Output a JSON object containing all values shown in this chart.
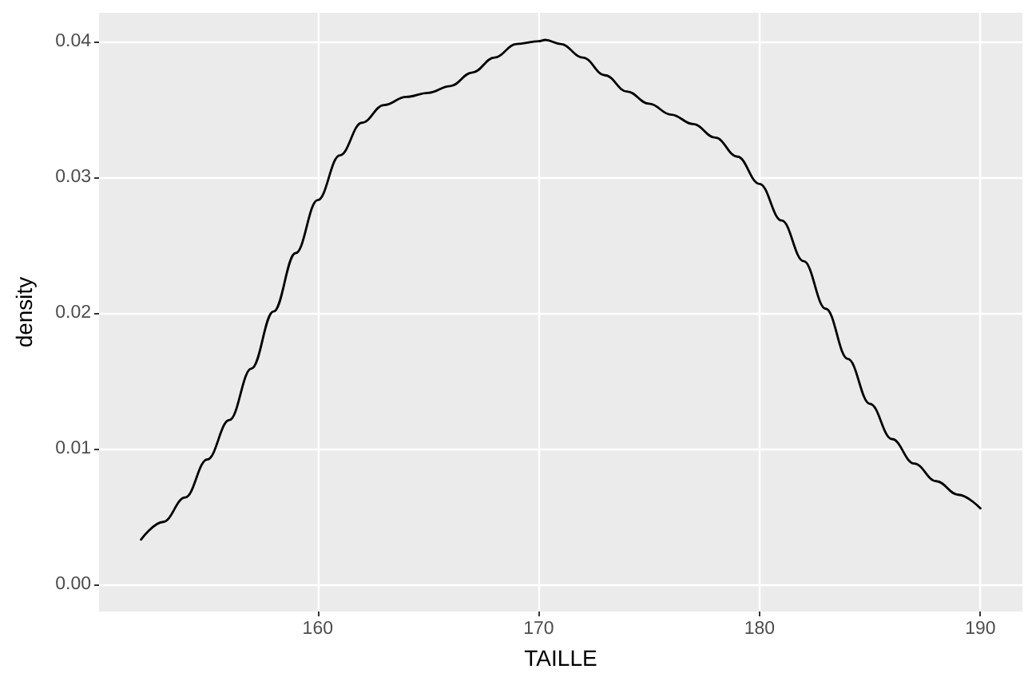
{
  "chart_data": {
    "type": "line",
    "xlabel": "TAILLE",
    "ylabel": "density",
    "x": [
      152,
      153,
      154,
      155,
      156,
      157,
      158,
      159,
      160,
      161,
      162,
      163,
      164,
      165,
      166,
      167,
      168,
      169,
      170,
      170.3,
      171,
      172,
      173,
      174,
      175,
      176,
      177,
      178,
      179,
      180,
      181,
      182,
      183,
      184,
      185,
      186,
      187,
      188,
      189,
      190
    ],
    "series": [
      {
        "color": "#000000",
        "values": [
          0.0033,
          0.0046,
          0.0064,
          0.0092,
          0.0121,
          0.0159,
          0.0201,
          0.0244,
          0.0283,
          0.0316,
          0.034,
          0.0353,
          0.0359,
          0.0362,
          0.0367,
          0.0377,
          0.0388,
          0.0398,
          0.04,
          0.0401,
          0.0398,
          0.0388,
          0.0375,
          0.0363,
          0.0354,
          0.0346,
          0.0339,
          0.0329,
          0.0315,
          0.0295,
          0.0268,
          0.0238,
          0.0203,
          0.0166,
          0.0133,
          0.0107,
          0.0089,
          0.0076,
          0.0066,
          0.0056
        ]
      }
    ],
    "xlim": [
      150.1,
      191.9
    ],
    "xticks": [
      160,
      170,
      180,
      190
    ],
    "ylim": [
      -0.002,
      0.0421
    ],
    "yticks": [
      {
        "value": 0,
        "label": "0.00"
      },
      {
        "value": 0.01,
        "label": "0.01"
      },
      {
        "value": 0.02,
        "label": "0.02"
      },
      {
        "value": 0.03,
        "label": "0.03"
      },
      {
        "value": 0.04,
        "label": "0.04"
      }
    ],
    "grid": true,
    "marker": "none",
    "line_style": "solid"
  }
}
